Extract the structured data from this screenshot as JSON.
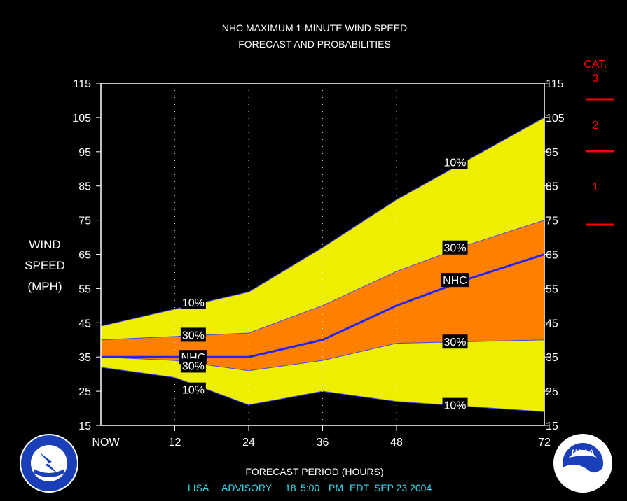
{
  "title_line1": "NHC MAXIMUM 1-MINUTE WIND SPEED",
  "title_line2": "FORECAST AND PROBABILITIES",
  "ylabel_lines": [
    "WIND",
    "SPEED",
    "(MPH)"
  ],
  "xlabel": "FORECAST PERIOD (HOURS)",
  "advisory": {
    "storm": "LISA",
    "label": "ADVISORY",
    "number": "18",
    "time": "5:00",
    "ampm": "PM",
    "tz": "EDT",
    "date": "SEP 23 2004"
  },
  "category_scale": {
    "title": "CAT.",
    "categories": [
      {
        "label": "3",
        "min_mph": 111
      },
      {
        "label": "2",
        "min_mph": 96
      },
      {
        "label": "1",
        "min_mph": 74
      }
    ],
    "color": "#ff0000"
  },
  "colors": {
    "outer_band": "#eeee00",
    "inner_band": "#ff8000",
    "nhc_line": "#2222ff",
    "label_text": "#ffffff",
    "label_bg": "#000000",
    "advisory_text": "#33ddee"
  },
  "logos": {
    "left": "NATIONAL WEATHER SERVICE",
    "right": "NOAA"
  },
  "chart_data": {
    "type": "area",
    "x": [
      0,
      12,
      24,
      36,
      48,
      60,
      72
    ],
    "x_tick_labels": [
      "NOW",
      "12",
      "24",
      "36",
      "48",
      "",
      "72"
    ],
    "xlim": [
      0,
      72
    ],
    "ylim": [
      15,
      115
    ],
    "yticks": [
      15,
      25,
      35,
      45,
      55,
      65,
      75,
      85,
      95,
      105,
      115
    ],
    "grid": "vertical dotted at 12, 24, 36, 48",
    "series": [
      {
        "name": "10%",
        "role": "upper",
        "values": [
          44,
          49,
          54,
          67,
          81,
          93,
          105
        ]
      },
      {
        "name": "30%",
        "role": "upper",
        "values": [
          40,
          41,
          42,
          50,
          60,
          68,
          75
        ]
      },
      {
        "name": "NHC",
        "role": "forecast",
        "values": [
          35,
          35,
          35,
          40,
          50,
          58,
          65
        ]
      },
      {
        "name": "30%",
        "role": "lower",
        "values": [
          35,
          34,
          31,
          34,
          39,
          39.5,
          40
        ]
      },
      {
        "name": "10%",
        "role": "lower",
        "values": [
          32,
          29,
          21,
          25,
          22,
          20.5,
          19
        ]
      }
    ],
    "annotations": [
      {
        "text": "10%",
        "x": 15,
        "y": 51
      },
      {
        "text": "30%",
        "x": 15,
        "y": 41.5
      },
      {
        "text": "NHC",
        "x": 15,
        "y": 35
      },
      {
        "text": "30%",
        "x": 15,
        "y": 32.5
      },
      {
        "text": "10%",
        "x": 15,
        "y": 25.5
      },
      {
        "text": "10%",
        "x": 57.5,
        "y": 92
      },
      {
        "text": "30%",
        "x": 57.5,
        "y": 67
      },
      {
        "text": "NHC",
        "x": 57.5,
        "y": 57.5
      },
      {
        "text": "30%",
        "x": 57.5,
        "y": 39.5
      },
      {
        "text": "10%",
        "x": 57.5,
        "y": 21
      }
    ]
  }
}
